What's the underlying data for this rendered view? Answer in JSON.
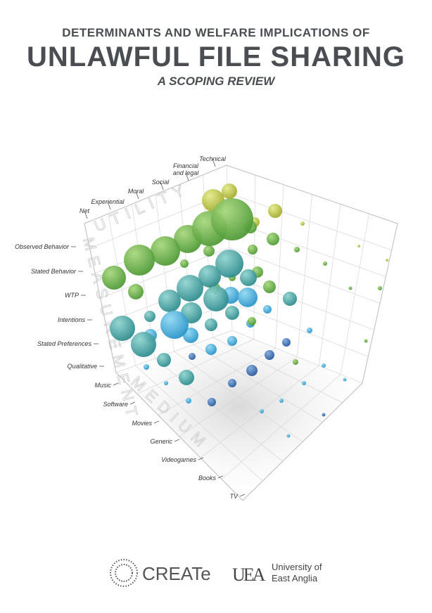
{
  "header": {
    "title_line1": "DETERMINANTS AND WELFARE IMPLICATIONS OF",
    "title_line2": "UNLAWFUL FILE SHARING",
    "subtitle": "A SCOPING REVIEW"
  },
  "chart": {
    "utility": {
      "label": "UTILITY",
      "categories": [
        "Net",
        "Experiential",
        "Moral",
        "Social",
        "Financial\nand legal",
        "Technical"
      ]
    },
    "measurement": {
      "label": "MEASUREMENT",
      "categories": [
        "Observed Behavior",
        "Stated Behavior",
        "WTP",
        "Intentions",
        "Stated Preferences",
        "Qualitative"
      ]
    },
    "medium": {
      "label": "MEDIUM",
      "categories": [
        "Music",
        "Software",
        "Movies",
        "Generic",
        "Videogames",
        "Books",
        "TV"
      ]
    }
  },
  "footer": {
    "create": "CREATe",
    "uea_mark": "UEA",
    "uea_line1": "University of",
    "uea_line2": "East Anglia"
  }
}
